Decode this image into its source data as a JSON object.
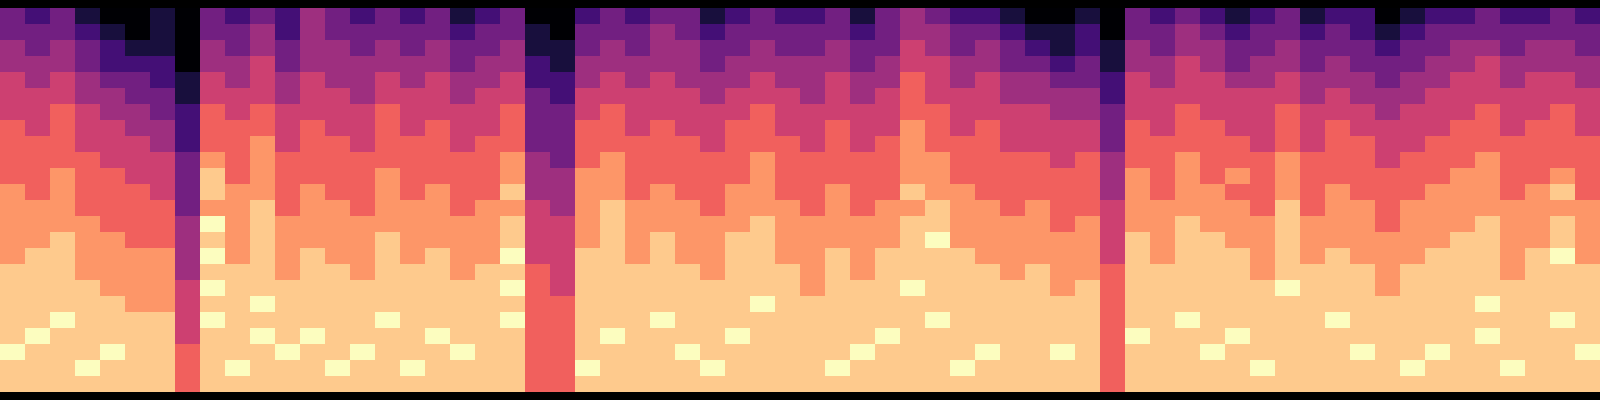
{
  "chart_data": {
    "type": "heatmap",
    "color": "magma",
    "tick_labels": false,
    "zlim": [
      0,
      9
    ],
    "cells": [
      [
        3,
        2,
        3,
        1,
        0,
        0,
        1,
        0,
        3,
        2,
        3,
        2,
        4,
        3,
        2,
        3,
        2,
        3,
        1,
        2,
        3,
        0,
        0,
        2,
        3,
        2,
        3,
        3,
        1,
        2,
        3,
        2,
        2,
        3,
        1,
        3,
        4,
        3,
        2,
        2,
        1,
        0,
        0,
        1,
        0,
        3,
        2,
        3,
        2,
        1,
        2,
        3,
        1,
        2,
        2,
        0,
        1,
        2,
        2,
        3,
        2,
        2,
        3,
        2
      ],
      [
        3,
        3,
        3,
        2,
        1,
        0,
        1,
        0,
        3,
        3,
        4,
        2,
        4,
        3,
        3,
        3,
        3,
        3,
        2,
        3,
        3,
        1,
        0,
        3,
        3,
        3,
        4,
        3,
        2,
        3,
        3,
        3,
        3,
        3,
        2,
        3,
        4,
        4,
        3,
        3,
        2,
        1,
        1,
        2,
        0,
        3,
        3,
        4,
        3,
        2,
        3,
        3,
        2,
        3,
        2,
        1,
        2,
        3,
        3,
        3,
        3,
        3,
        3,
        3
      ],
      [
        4,
        3,
        4,
        3,
        2,
        1,
        1,
        0,
        4,
        3,
        4,
        3,
        4,
        4,
        3,
        4,
        3,
        4,
        3,
        3,
        4,
        1,
        1,
        3,
        4,
        3,
        4,
        4,
        3,
        3,
        4,
        3,
        3,
        4,
        3,
        3,
        5,
        4,
        3,
        4,
        3,
        2,
        1,
        2,
        1,
        4,
        3,
        4,
        4,
        3,
        3,
        4,
        3,
        3,
        3,
        2,
        3,
        3,
        4,
        4,
        3,
        4,
        4,
        3
      ],
      [
        4,
        4,
        4,
        3,
        2,
        2,
        2,
        0,
        4,
        4,
        5,
        3,
        4,
        4,
        4,
        4,
        4,
        4,
        3,
        4,
        4,
        2,
        1,
        4,
        4,
        4,
        4,
        4,
        3,
        4,
        4,
        4,
        4,
        4,
        3,
        4,
        5,
        5,
        4,
        4,
        3,
        3,
        2,
        3,
        1,
        4,
        4,
        5,
        4,
        3,
        4,
        4,
        3,
        4,
        3,
        3,
        3,
        4,
        4,
        5,
        4,
        4,
        4,
        4
      ],
      [
        5,
        4,
        5,
        4,
        3,
        3,
        2,
        1,
        5,
        4,
        5,
        4,
        5,
        4,
        4,
        5,
        4,
        5,
        4,
        4,
        5,
        2,
        2,
        4,
        5,
        4,
        5,
        4,
        4,
        4,
        5,
        4,
        4,
        5,
        4,
        4,
        6,
        5,
        4,
        5,
        4,
        4,
        3,
        3,
        2,
        5,
        4,
        5,
        5,
        4,
        4,
        5,
        4,
        4,
        4,
        3,
        4,
        4,
        5,
        5,
        4,
        5,
        5,
        4
      ],
      [
        5,
        5,
        5,
        4,
        4,
        3,
        3,
        1,
        5,
        5,
        5,
        4,
        5,
        5,
        4,
        5,
        5,
        5,
        4,
        5,
        5,
        3,
        2,
        5,
        5,
        5,
        5,
        5,
        4,
        5,
        5,
        5,
        4,
        5,
        4,
        5,
        6,
        5,
        5,
        5,
        4,
        4,
        4,
        4,
        2,
        5,
        5,
        5,
        5,
        5,
        5,
        5,
        4,
        5,
        4,
        4,
        4,
        5,
        5,
        5,
        5,
        5,
        5,
        5
      ],
      [
        5,
        5,
        6,
        5,
        4,
        4,
        3,
        2,
        6,
        5,
        6,
        5,
        5,
        5,
        5,
        6,
        5,
        5,
        5,
        5,
        6,
        3,
        3,
        5,
        6,
        5,
        5,
        5,
        5,
        5,
        6,
        5,
        5,
        5,
        5,
        5,
        6,
        6,
        5,
        5,
        5,
        5,
        4,
        4,
        3,
        5,
        5,
        6,
        5,
        5,
        5,
        6,
        5,
        5,
        5,
        4,
        5,
        5,
        5,
        6,
        5,
        5,
        6,
        5
      ],
      [
        6,
        5,
        6,
        5,
        5,
        4,
        4,
        2,
        6,
        6,
        6,
        5,
        6,
        5,
        5,
        6,
        5,
        6,
        5,
        5,
        6,
        3,
        3,
        6,
        6,
        5,
        6,
        5,
        5,
        6,
        6,
        5,
        5,
        6,
        5,
        5,
        7,
        6,
        5,
        6,
        5,
        5,
        5,
        5,
        3,
        6,
        5,
        6,
        6,
        5,
        5,
        6,
        5,
        6,
        5,
        5,
        5,
        5,
        6,
        6,
        5,
        6,
        6,
        5
      ],
      [
        6,
        6,
        6,
        5,
        5,
        5,
        4,
        2,
        6,
        6,
        7,
        5,
        6,
        6,
        5,
        6,
        6,
        6,
        5,
        6,
        6,
        3,
        3,
        6,
        6,
        6,
        6,
        6,
        5,
        6,
        6,
        6,
        5,
        6,
        5,
        6,
        7,
        6,
        6,
        6,
        5,
        5,
        5,
        5,
        3,
        6,
        6,
        6,
        6,
        6,
        5,
        6,
        5,
        6,
        6,
        5,
        5,
        6,
        6,
        6,
        6,
        6,
        6,
        6
      ],
      [
        6,
        6,
        6,
        6,
        5,
        5,
        5,
        3,
        7,
        6,
        7,
        6,
        6,
        6,
        6,
        6,
        6,
        6,
        6,
        6,
        7,
        4,
        3,
        6,
        7,
        6,
        6,
        6,
        6,
        6,
        7,
        6,
        6,
        6,
        6,
        6,
        7,
        7,
        6,
        6,
        6,
        6,
        5,
        6,
        4,
        6,
        6,
        7,
        6,
        6,
        6,
        7,
        6,
        6,
        6,
        5,
        6,
        6,
        6,
        7,
        6,
        6,
        6,
        6
      ],
      [
        6,
        6,
        7,
        6,
        6,
        5,
        5,
        3,
        8,
        6,
        7,
        6,
        6,
        6,
        6,
        7,
        6,
        6,
        6,
        6,
        7,
        4,
        4,
        7,
        7,
        6,
        6,
        6,
        6,
        6,
        7,
        6,
        6,
        6,
        6,
        6,
        7,
        7,
        6,
        6,
        6,
        6,
        6,
        6,
        4,
        7,
        6,
        7,
        6,
        7,
        6,
        7,
        6,
        6,
        6,
        6,
        6,
        6,
        7,
        7,
        6,
        6,
        7,
        6
      ],
      [
        7,
        6,
        7,
        6,
        6,
        6,
        5,
        3,
        8,
        7,
        7,
        6,
        7,
        6,
        6,
        7,
        6,
        7,
        6,
        6,
        8,
        4,
        4,
        7,
        7,
        6,
        7,
        6,
        6,
        7,
        7,
        6,
        6,
        7,
        6,
        6,
        8,
        7,
        7,
        6,
        6,
        6,
        6,
        6,
        4,
        7,
        6,
        7,
        7,
        6,
        6,
        7,
        6,
        7,
        6,
        6,
        6,
        7,
        7,
        7,
        6,
        7,
        8,
        6
      ],
      [
        7,
        7,
        7,
        6,
        6,
        6,
        6,
        3,
        7,
        7,
        8,
        6,
        7,
        7,
        6,
        7,
        7,
        7,
        6,
        7,
        7,
        5,
        4,
        7,
        8,
        7,
        7,
        7,
        6,
        7,
        7,
        7,
        6,
        7,
        6,
        7,
        7,
        8,
        7,
        7,
        6,
        7,
        6,
        6,
        5,
        7,
        7,
        7,
        7,
        7,
        6,
        8,
        6,
        7,
        7,
        6,
        7,
        7,
        7,
        7,
        7,
        7,
        7,
        7
      ],
      [
        7,
        7,
        7,
        7,
        6,
        6,
        6,
        4,
        9,
        7,
        8,
        7,
        7,
        7,
        7,
        7,
        7,
        7,
        7,
        7,
        8,
        5,
        5,
        7,
        8,
        7,
        7,
        7,
        7,
        7,
        8,
        7,
        7,
        7,
        7,
        7,
        8,
        8,
        7,
        7,
        7,
        7,
        6,
        7,
        5,
        7,
        7,
        8,
        7,
        7,
        7,
        8,
        7,
        7,
        7,
        6,
        7,
        7,
        7,
        8,
        7,
        7,
        8,
        7
      ],
      [
        7,
        7,
        8,
        7,
        7,
        6,
        6,
        4,
        8,
        7,
        8,
        7,
        7,
        7,
        7,
        8,
        7,
        7,
        7,
        7,
        8,
        5,
        5,
        7,
        8,
        7,
        8,
        7,
        7,
        8,
        8,
        7,
        7,
        7,
        7,
        7,
        8,
        9,
        7,
        7,
        7,
        7,
        7,
        7,
        5,
        8,
        7,
        8,
        8,
        7,
        7,
        8,
        7,
        7,
        7,
        7,
        7,
        7,
        8,
        8,
        7,
        7,
        8,
        7
      ],
      [
        7,
        8,
        8,
        7,
        7,
        7,
        7,
        4,
        9,
        7,
        8,
        7,
        8,
        7,
        7,
        8,
        7,
        8,
        7,
        7,
        9,
        5,
        5,
        8,
        8,
        7,
        8,
        7,
        7,
        8,
        8,
        7,
        7,
        8,
        7,
        8,
        8,
        8,
        8,
        7,
        7,
        7,
        7,
        7,
        5,
        8,
        7,
        8,
        8,
        8,
        7,
        8,
        7,
        8,
        7,
        7,
        7,
        8,
        8,
        8,
        7,
        8,
        9,
        7
      ],
      [
        8,
        8,
        8,
        7,
        7,
        7,
        7,
        4,
        8,
        8,
        8,
        7,
        8,
        8,
        7,
        8,
        8,
        8,
        7,
        8,
        8,
        6,
        5,
        8,
        8,
        8,
        8,
        8,
        7,
        8,
        8,
        8,
        7,
        8,
        7,
        8,
        8,
        8,
        8,
        8,
        7,
        8,
        7,
        7,
        6,
        8,
        8,
        8,
        8,
        8,
        7,
        8,
        8,
        8,
        8,
        7,
        8,
        8,
        8,
        8,
        7,
        8,
        8,
        8
      ],
      [
        8,
        8,
        8,
        8,
        7,
        7,
        7,
        5,
        9,
        8,
        8,
        8,
        8,
        8,
        8,
        8,
        8,
        8,
        8,
        8,
        9,
        6,
        5,
        8,
        8,
        8,
        8,
        8,
        8,
        8,
        8,
        8,
        7,
        8,
        8,
        8,
        9,
        8,
        8,
        8,
        8,
        8,
        7,
        8,
        6,
        8,
        8,
        8,
        8,
        8,
        8,
        9,
        8,
        8,
        8,
        7,
        8,
        8,
        8,
        8,
        8,
        8,
        8,
        8
      ],
      [
        8,
        8,
        8,
        8,
        8,
        7,
        7,
        5,
        8,
        8,
        9,
        8,
        8,
        8,
        8,
        8,
        8,
        8,
        8,
        8,
        8,
        6,
        6,
        8,
        8,
        8,
        8,
        8,
        8,
        8,
        9,
        8,
        8,
        8,
        8,
        8,
        8,
        8,
        8,
        8,
        8,
        8,
        8,
        8,
        6,
        8,
        8,
        8,
        8,
        8,
        8,
        8,
        8,
        8,
        8,
        8,
        8,
        8,
        8,
        9,
        8,
        8,
        8,
        8
      ],
      [
        8,
        8,
        9,
        8,
        8,
        8,
        8,
        5,
        9,
        8,
        8,
        8,
        8,
        8,
        8,
        9,
        8,
        8,
        8,
        8,
        9,
        6,
        6,
        8,
        8,
        8,
        9,
        8,
        8,
        8,
        8,
        8,
        8,
        8,
        8,
        8,
        8,
        9,
        8,
        8,
        8,
        8,
        8,
        8,
        6,
        8,
        8,
        9,
        8,
        8,
        8,
        8,
        8,
        9,
        8,
        8,
        8,
        8,
        8,
        8,
        8,
        8,
        9,
        8
      ],
      [
        8,
        9,
        8,
        8,
        8,
        8,
        8,
        5,
        8,
        8,
        9,
        8,
        9,
        8,
        8,
        8,
        8,
        9,
        8,
        8,
        8,
        6,
        6,
        8,
        9,
        8,
        8,
        8,
        8,
        9,
        8,
        8,
        8,
        8,
        8,
        9,
        8,
        8,
        8,
        8,
        8,
        8,
        8,
        8,
        6,
        9,
        8,
        8,
        8,
        9,
        8,
        8,
        8,
        8,
        8,
        8,
        8,
        8,
        8,
        9,
        8,
        8,
        8,
        8
      ],
      [
        9,
        8,
        8,
        8,
        9,
        8,
        8,
        6,
        8,
        8,
        8,
        9,
        8,
        8,
        9,
        8,
        8,
        8,
        9,
        8,
        8,
        6,
        6,
        8,
        8,
        8,
        8,
        9,
        8,
        8,
        8,
        8,
        8,
        8,
        9,
        8,
        8,
        8,
        8,
        9,
        8,
        8,
        9,
        8,
        6,
        8,
        8,
        8,
        9,
        8,
        8,
        8,
        8,
        8,
        9,
        8,
        8,
        9,
        8,
        8,
        8,
        8,
        8,
        9
      ],
      [
        8,
        8,
        8,
        9,
        8,
        8,
        8,
        6,
        8,
        9,
        8,
        8,
        8,
        9,
        8,
        8,
        9,
        8,
        8,
        8,
        8,
        6,
        6,
        9,
        8,
        8,
        8,
        8,
        9,
        8,
        8,
        8,
        8,
        9,
        8,
        8,
        8,
        8,
        9,
        8,
        8,
        8,
        8,
        8,
        6,
        8,
        8,
        8,
        8,
        8,
        9,
        8,
        8,
        8,
        8,
        8,
        9,
        8,
        8,
        8,
        9,
        8,
        8,
        8
      ],
      [
        8,
        8,
        8,
        8,
        8,
        8,
        8,
        6,
        8,
        8,
        8,
        8,
        8,
        8,
        8,
        8,
        8,
        8,
        8,
        8,
        8,
        6,
        6,
        8,
        8,
        8,
        8,
        8,
        8,
        8,
        8,
        8,
        8,
        8,
        8,
        8,
        8,
        8,
        8,
        8,
        8,
        8,
        8,
        8,
        6,
        8,
        8,
        8,
        8,
        8,
        8,
        8,
        8,
        8,
        8,
        8,
        8,
        8,
        8,
        8,
        8,
        8,
        8,
        8
      ]
    ]
  }
}
